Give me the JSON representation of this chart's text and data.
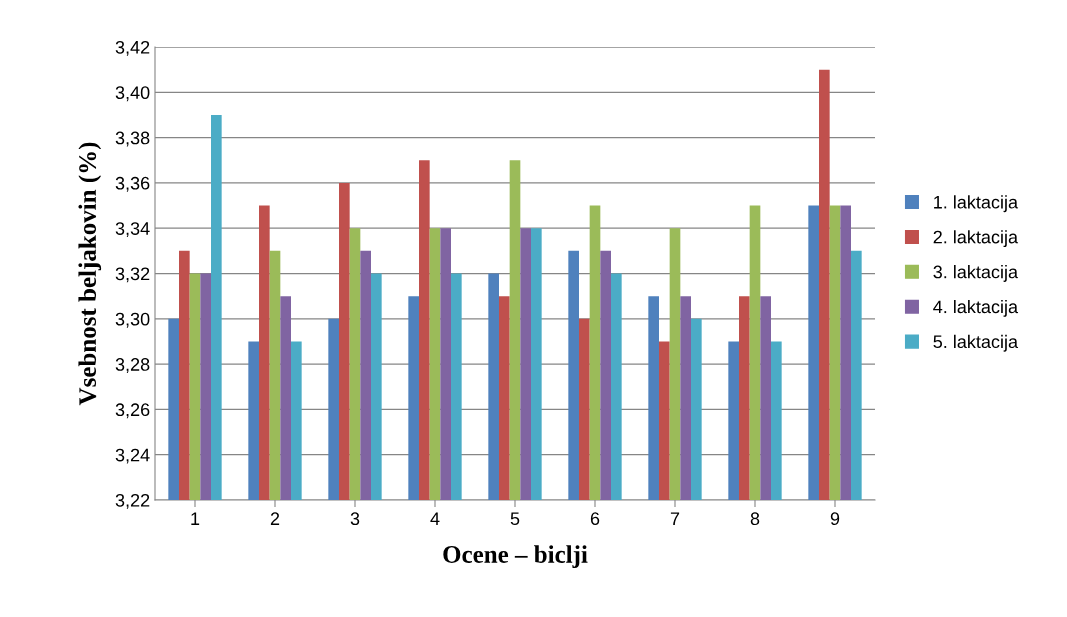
{
  "chart_data": {
    "type": "bar",
    "xlabel": "Ocene – biclji",
    "ylabel": "Vsebnost beljakovin (%)",
    "categories": [
      "1",
      "2",
      "3",
      "4",
      "5",
      "6",
      "7",
      "8",
      "9"
    ],
    "series": [
      {
        "name": "1. laktacija",
        "color": "#4f81bd",
        "values": [
          3.3,
          3.29,
          3.3,
          3.31,
          3.32,
          3.33,
          3.31,
          3.29,
          3.35
        ]
      },
      {
        "name": "2. laktacija",
        "color": "#c0504d",
        "values": [
          3.33,
          3.35,
          3.36,
          3.37,
          3.31,
          3.3,
          3.29,
          3.31,
          3.41
        ]
      },
      {
        "name": "3. laktacija",
        "color": "#9bbb59",
        "values": [
          3.32,
          3.33,
          3.34,
          3.34,
          3.37,
          3.35,
          3.34,
          3.35,
          3.35
        ]
      },
      {
        "name": "4. laktacija",
        "color": "#8064a2",
        "values": [
          3.32,
          3.31,
          3.33,
          3.34,
          3.34,
          3.33,
          3.31,
          3.31,
          3.35
        ]
      },
      {
        "name": "5. laktacija",
        "color": "#4bacc6",
        "values": [
          3.39,
          3.29,
          3.32,
          3.32,
          3.34,
          3.32,
          3.3,
          3.29,
          3.33
        ]
      }
    ],
    "ylim": [
      3.22,
      3.42
    ],
    "yticks": [
      {
        "value": 3.22,
        "label": "3,22"
      },
      {
        "value": 3.24,
        "label": "3,24"
      },
      {
        "value": 3.26,
        "label": "3,26"
      },
      {
        "value": 3.28,
        "label": "3,28"
      },
      {
        "value": 3.3,
        "label": "3,30"
      },
      {
        "value": 3.32,
        "label": "3,32"
      },
      {
        "value": 3.34,
        "label": "3,34"
      },
      {
        "value": 3.36,
        "label": "3,36"
      },
      {
        "value": 3.38,
        "label": "3,38"
      },
      {
        "value": 3.4,
        "label": "3,40"
      },
      {
        "value": 3.42,
        "label": "3,42"
      }
    ],
    "grid": "y",
    "legend": "right"
  }
}
